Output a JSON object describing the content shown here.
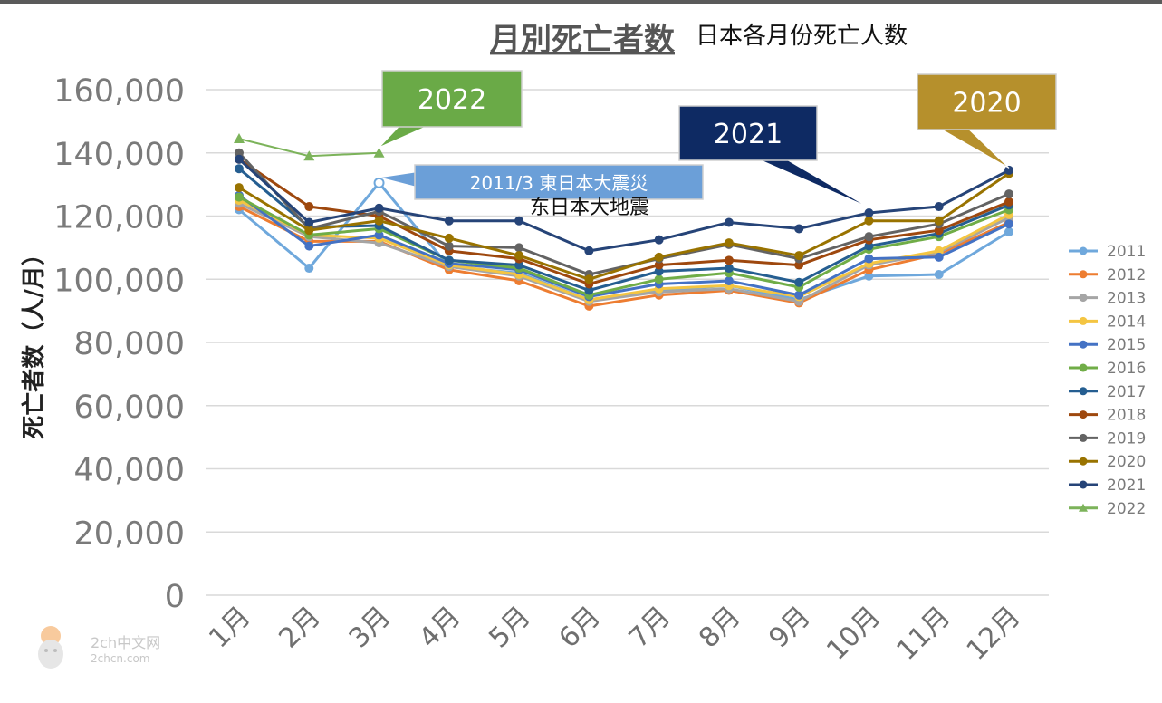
{
  "chart_data": {
    "type": "line",
    "title": "月別死亡者数",
    "subtitle": "日本各月份死亡人数",
    "ylabel": "死亡者数（人/月）",
    "xlabel": "",
    "ylim": [
      0,
      160000
    ],
    "yticks": [
      "0",
      "20,000",
      "40,000",
      "60,000",
      "80,000",
      "100,000",
      "120,000",
      "140,000",
      "160,000"
    ],
    "categories": [
      "1月",
      "2月",
      "3月",
      "4月",
      "5月",
      "6月",
      "7月",
      "8月",
      "9月",
      "10月",
      "11月",
      "12月"
    ],
    "grid": true,
    "legend_position": "right",
    "series": [
      {
        "name": "2011",
        "color": "#6fa8dc",
        "marker": "circle",
        "values": [
          122000,
          103500,
          130500,
          104000,
          102000,
          93500,
          96500,
          98000,
          93500,
          101000,
          101500,
          115000
        ]
      },
      {
        "name": "2012",
        "color": "#ed7d31",
        "marker": "circle",
        "values": [
          123000,
          112000,
          112000,
          103000,
          99500,
          91500,
          95000,
          96500,
          92500,
          103000,
          108000,
          118000
        ]
      },
      {
        "name": "2013",
        "color": "#a5a5a5",
        "marker": "circle",
        "values": [
          124000,
          113500,
          111500,
          104000,
          101000,
          93000,
          96000,
          97000,
          93000,
          104500,
          108500,
          119500
        ]
      },
      {
        "name": "2014",
        "color": "#f4c542",
        "marker": "circle",
        "values": [
          125000,
          114000,
          113000,
          104500,
          101500,
          93500,
          97000,
          98000,
          94500,
          105000,
          109000,
          120500
        ]
      },
      {
        "name": "2015",
        "color": "#4472c4",
        "marker": "circle",
        "values": [
          126500,
          110500,
          114000,
          105000,
          103000,
          94500,
          98500,
          99500,
          95000,
          106500,
          107000,
          117500
        ]
      },
      {
        "name": "2016",
        "color": "#70ad47",
        "marker": "circle",
        "values": [
          126000,
          114000,
          116000,
          106000,
          103500,
          95000,
          100000,
          102000,
          97500,
          109500,
          113500,
          122000
        ]
      },
      {
        "name": "2017",
        "color": "#255e91",
        "marker": "circle",
        "values": [
          135000,
          116500,
          117000,
          106000,
          104500,
          96500,
          102500,
          103500,
          99000,
          110500,
          114500,
          123500
        ]
      },
      {
        "name": "2018",
        "color": "#9e480e",
        "marker": "circle",
        "values": [
          138000,
          123000,
          120000,
          109000,
          106500,
          98500,
          104500,
          106000,
          104500,
          112500,
          115500,
          124500
        ]
      },
      {
        "name": "2019",
        "color": "#636363",
        "marker": "circle",
        "values": [
          140000,
          116000,
          121500,
          110500,
          110000,
          101500,
          106500,
          111000,
          106500,
          113500,
          117500,
          127000
        ]
      },
      {
        "name": "2020",
        "color": "#997300",
        "marker": "circle",
        "values": [
          129000,
          115500,
          118500,
          113000,
          107500,
          100000,
          107000,
          111500,
          107500,
          118500,
          118500,
          133500
        ]
      },
      {
        "name": "2021",
        "color": "#264478",
        "marker": "circle",
        "values": [
          138000,
          118000,
          122500,
          118500,
          118500,
          109000,
          112500,
          118000,
          116000,
          121000,
          123000,
          134500
        ]
      },
      {
        "name": "2022",
        "color": "#7cb35a",
        "marker": "triangle",
        "values": [
          144500,
          139000,
          140000,
          null,
          null,
          null,
          null,
          null,
          null,
          null,
          null,
          null
        ]
      }
    ],
    "callouts": [
      {
        "text": "2022",
        "fill": "#6aaa47",
        "text_color": "#ffffff",
        "series": "2022",
        "point": 2
      },
      {
        "text": "2021",
        "fill": "#0e2a63",
        "text_color": "#ffffff",
        "series": "2021",
        "point": 9
      },
      {
        "text": "2020",
        "fill": "#b6902c",
        "text_color": "#ffffff",
        "series": "2020",
        "point": 11
      },
      {
        "text": "2011/3 東日本大震災",
        "fill": "#6b9fd8",
        "text_color": "#ffffff",
        "series": "2011",
        "point": 2
      }
    ],
    "annotation_note": "东日本大地震"
  },
  "watermark": {
    "line1": "2ch中文网",
    "line2": "2chcn.com"
  }
}
